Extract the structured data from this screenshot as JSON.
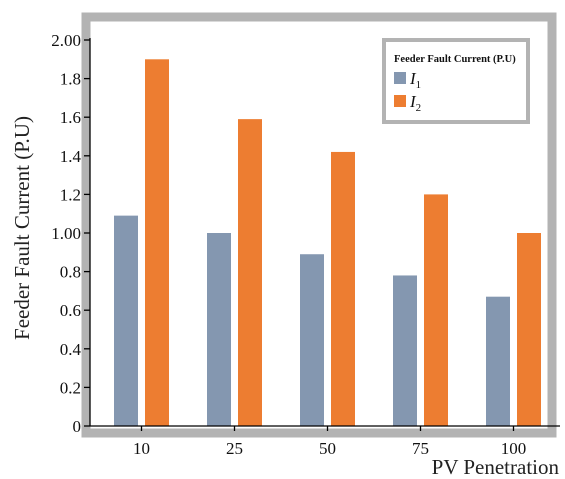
{
  "chart_data": {
    "type": "bar",
    "categories": [
      "10",
      "25",
      "50",
      "75",
      "100"
    ],
    "series": [
      {
        "name": "I1",
        "values": [
          1.09,
          1.0,
          0.89,
          0.78,
          0.67
        ],
        "color": "#8497b0"
      },
      {
        "name": "I2",
        "values": [
          1.9,
          1.59,
          1.42,
          1.2,
          1.0
        ],
        "color": "#ed7d31"
      }
    ],
    "xlabel": "PV Penetration",
    "ylabel": "Feeder Fault Current (P.U)",
    "ylim": [
      0,
      2.0
    ],
    "yticks": [
      {
        "value": 0,
        "label": "0"
      },
      {
        "value": 0.2,
        "label": "0.2"
      },
      {
        "value": 0.4,
        "label": "0.4"
      },
      {
        "value": 0.6,
        "label": "0.6"
      },
      {
        "value": 0.8,
        "label": "0.8"
      },
      {
        "value": 1.0,
        "label": "1.00"
      },
      {
        "value": 1.2,
        "label": "1.2"
      },
      {
        "value": 1.4,
        "label": "1.4"
      },
      {
        "value": 1.6,
        "label": "1.6"
      },
      {
        "value": 1.8,
        "label": "1.8"
      },
      {
        "value": 2.0,
        "label": "2.00"
      }
    ],
    "legend": {
      "title": "Feeder Fault Current (P.U)",
      "position": "top-right",
      "entries": [
        {
          "letter": "I",
          "sub": "1"
        },
        {
          "letter": "I",
          "sub": "2"
        }
      ]
    },
    "frame_color": "#b3b3b3",
    "grid": false
  }
}
